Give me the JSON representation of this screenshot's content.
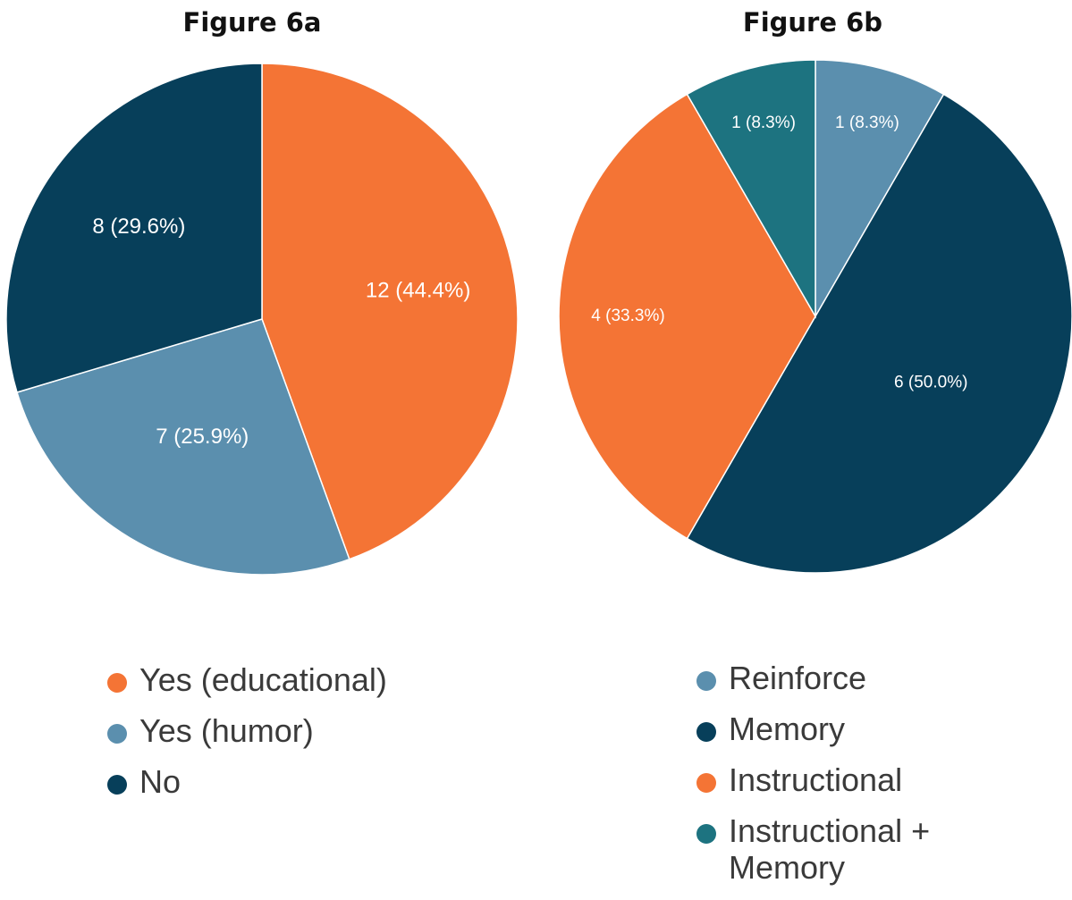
{
  "chart_data": [
    {
      "type": "pie",
      "title": "Figure 6a",
      "categories": [
        "Yes (educational)",
        "Yes (humor)",
        "No"
      ],
      "values": [
        12,
        7,
        8
      ],
      "percentages": [
        44.4,
        25.9,
        29.6
      ],
      "data_labels": [
        "12 (44.4%)",
        "7 (25.9%)",
        "8 (29.6%)"
      ],
      "colors": [
        "#f47435",
        "#5b8fae",
        "#073f5a"
      ],
      "start_angle": "12 o'clock",
      "direction": "clockwise",
      "legend": "bottom"
    },
    {
      "type": "pie",
      "title": "Figure 6b",
      "categories": [
        "Reinforce",
        "Memory",
        "Instructional",
        "Instructional + Memory"
      ],
      "values": [
        1,
        6,
        4,
        1
      ],
      "percentages": [
        8.3,
        50.0,
        33.3,
        8.3
      ],
      "data_labels": [
        "1 (8.3%)",
        "6 (50.0%)",
        "4 (33.3%)",
        "1 (8.3%)"
      ],
      "colors": [
        "#5b8fae",
        "#073f5a",
        "#f47435",
        "#1d7380"
      ],
      "start_angle": "12 o'clock",
      "direction": "clockwise",
      "legend": "bottom"
    }
  ]
}
